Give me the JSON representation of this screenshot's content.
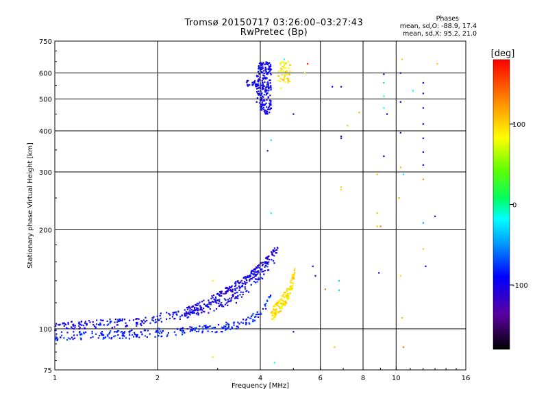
{
  "header": {
    "title_line1": "Tromsø 20150717 03:26:00–03:27:43",
    "title_line2": "RwPretec (Bp)",
    "phases_heading": "Phases",
    "phases_o": "mean, sd,O: -88.9, 17.4",
    "phases_x": "mean, sd,X:  95.2, 21.0"
  },
  "colorbar": {
    "label": "[deg]",
    "ticks": [
      {
        "value": 100,
        "label": "100"
      },
      {
        "value": 0,
        "label": "0"
      },
      {
        "value": -100,
        "label": "-100"
      }
    ],
    "range": [
      -180,
      180
    ]
  },
  "chart_data": {
    "type": "scatter",
    "title": "Tromsø 20150717 03:26:00–03:27:43",
    "subtitle": "RwPretec (Bp)",
    "xlabel": "Frequency [MHz]",
    "ylabel": "Stationary phase Virtual Height [km]",
    "xscale": "log",
    "yscale": "log",
    "xlim": [
      1,
      16
    ],
    "ylim": [
      75,
      750
    ],
    "x_ticks": [
      1,
      2,
      4,
      6,
      8,
      10,
      16
    ],
    "x_tick_labels": [
      "1",
      "2",
      "4",
      "6",
      "8",
      "10",
      "16"
    ],
    "y_ticks": [
      75,
      100,
      200,
      300,
      400,
      500,
      600,
      750
    ],
    "y_tick_labels": [
      "75",
      "100",
      "200",
      "300",
      "400",
      "500",
      "600",
      "750"
    ],
    "grid": true,
    "color_encoding": "phase [deg]",
    "series": [
      {
        "traces": [
          {
            "x": [
              1.0,
              1.3,
              1.6,
              1.9,
              2.2,
              2.5,
              2.8,
              3.1,
              3.4,
              3.7,
              4.0,
              4.3
            ],
            "y": [
              95,
              96,
              96,
              97,
              98,
              99,
              100,
              101,
              103,
              106,
              112,
              125
            ],
            "phase": -95
          },
          {
            "x": [
              1.0,
              1.2,
              1.5,
              1.8,
              2.0,
              2.3,
              2.6,
              2.9,
              3.2,
              3.5,
              3.8,
              4.1,
              4.4
            ],
            "y": [
              102,
              103,
              104,
              105,
              108,
              110,
              113,
              116,
              121,
              128,
              136,
              148,
              162
            ],
            "phase": -105
          },
          {
            "x": [
              2.4,
              2.7,
              3.0,
              3.3,
              3.6,
              3.9,
              4.2,
              4.5
            ],
            "y": [
              112,
              118,
              125,
              133,
              140,
              150,
              162,
              176
            ],
            "phase": -110
          }
        ],
        "o_upper": {
          "x_range": [
            3.9,
            4.8
          ],
          "y_range": [
            450,
            650
          ],
          "phase": -105
        },
        "x_trace": {
          "x": [
            4.3,
            4.45,
            4.6,
            4.75,
            4.9,
            5.05
          ],
          "y": [
            110,
            114,
            119,
            125,
            133,
            148
          ],
          "phase": 95
        },
        "scatter_points": [
          [
            2.9,
            82,
            95
          ],
          [
            2.9,
            140,
            90
          ],
          [
            3.4,
            120,
            -105
          ],
          [
            4.2,
            348,
            -95
          ],
          [
            4.3,
            375,
            -40
          ],
          [
            4.3,
            225,
            -30
          ],
          [
            4.4,
            79,
            -20
          ],
          [
            4.6,
            540,
            90
          ],
          [
            4.7,
            660,
            -30
          ],
          [
            5.0,
            450,
            -100
          ],
          [
            5.0,
            98,
            -100
          ],
          [
            5.4,
            600,
            95
          ],
          [
            5.5,
            640,
            135
          ],
          [
            5.5,
            640,
            170
          ],
          [
            5.7,
            155,
            -100
          ],
          [
            5.8,
            145,
            -100
          ],
          [
            6.2,
            132,
            140
          ],
          [
            6.5,
            545,
            -100
          ],
          [
            6.6,
            88,
            110
          ],
          [
            6.8,
            140,
            -40
          ],
          [
            6.8,
            131,
            -40
          ],
          [
            6.9,
            380,
            -110
          ],
          [
            6.9,
            385,
            -115
          ],
          [
            6.9,
            265,
            100
          ],
          [
            6.9,
            270,
            100
          ],
          [
            6.9,
            545,
            -110
          ],
          [
            7.2,
            415,
            110
          ],
          [
            7.8,
            455,
            120
          ],
          [
            8.8,
            205,
            110
          ],
          [
            8.8,
            225,
            110
          ],
          [
            8.8,
            295,
            110
          ],
          [
            8.9,
            148,
            -110
          ],
          [
            9.0,
            205,
            140
          ],
          [
            9.2,
            595,
            -100
          ],
          [
            9.2,
            560,
            -40
          ],
          [
            9.2,
            510,
            -20
          ],
          [
            9.2,
            470,
            -30
          ],
          [
            9.2,
            335,
            -100
          ],
          [
            9.4,
            450,
            -100
          ],
          [
            10.2,
            250,
            120
          ],
          [
            10.3,
            600,
            -100
          ],
          [
            10.3,
            490,
            -100
          ],
          [
            10.3,
            395,
            -110
          ],
          [
            10.3,
            310,
            110
          ],
          [
            10.3,
            145,
            100
          ],
          [
            10.4,
            108,
            110
          ],
          [
            10.4,
            660,
            110
          ],
          [
            10.5,
            88,
            140
          ],
          [
            10.5,
            295,
            -40
          ],
          [
            11.2,
            530,
            -20
          ],
          [
            12.0,
            560,
            -100
          ],
          [
            12.0,
            520,
            -110
          ],
          [
            12.0,
            470,
            -100
          ],
          [
            12.0,
            420,
            -110
          ],
          [
            12.0,
            380,
            -110
          ],
          [
            12.0,
            345,
            -100
          ],
          [
            12.0,
            315,
            -110
          ],
          [
            12.0,
            285,
            130
          ],
          [
            12.0,
            210,
            -60
          ],
          [
            12.0,
            175,
            110
          ],
          [
            12.2,
            155,
            -100
          ],
          [
            13.0,
            220,
            -110
          ],
          [
            13.2,
            640,
            110
          ]
        ]
      }
    ]
  }
}
